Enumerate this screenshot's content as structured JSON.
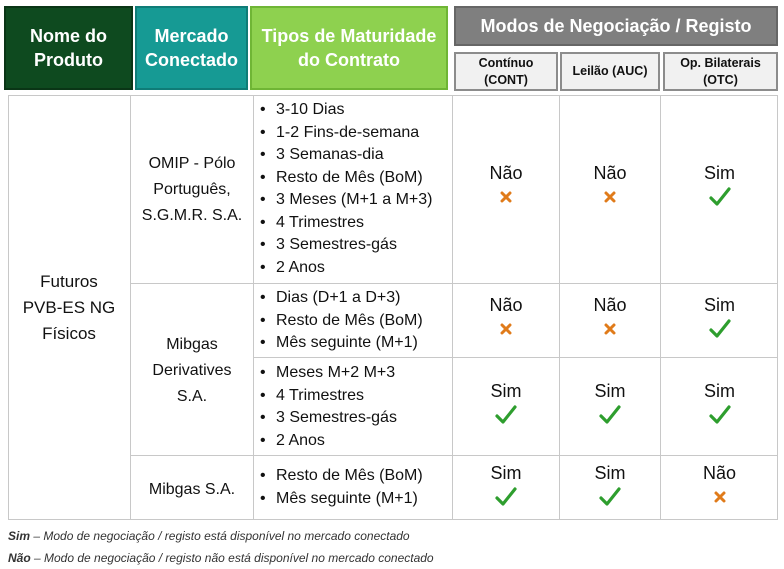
{
  "header": {
    "product": "Nome do Produto",
    "market": "Mercado Conectado",
    "maturity": "Tipos de Maturidade do Contrato",
    "modes": "Modos de Negociação / Registo",
    "sub": {
      "cont": "Contínuo (CONT)",
      "auc": "Leilão (AUC)",
      "otc": "Op. Bilaterais (OTC)"
    }
  },
  "product": "Futuros PVB-ES NG Físicos",
  "markets": {
    "omip": "OMIP - Pólo Português, S.G.M.R. S.A.",
    "mibgas_derivatives": "Mibgas Derivatives S.A.",
    "mibgas": "Mibgas S.A."
  },
  "rows": [
    {
      "maturities": [
        "3-10 Dias",
        "1-2 Fins-de-semana",
        "3 Semanas-dia",
        "Resto de Mês (BoM)",
        "3 Meses (M+1 a M+3)",
        "4 Trimestres",
        "3 Semestres-gás",
        "2 Anos"
      ],
      "cont": "Não",
      "auc": "Não",
      "otc": "Sim"
    },
    {
      "maturities": [
        "Dias (D+1 a D+3)",
        "Resto de Mês (BoM)",
        "Mês seguinte (M+1)"
      ],
      "cont": "Não",
      "auc": "Não",
      "otc": "Sim"
    },
    {
      "maturities": [
        "Meses M+2 M+3",
        "4 Trimestres",
        "3 Semestres-gás",
        "2 Anos"
      ],
      "cont": "Sim",
      "auc": "Sim",
      "otc": "Sim"
    },
    {
      "maturities": [
        "Resto de Mês (BoM)",
        "Mês seguinte (M+1)"
      ],
      "cont": "Sim",
      "auc": "Sim",
      "otc": "Não"
    }
  ],
  "icons": {
    "yes": "check-icon",
    "no": "cross-icon"
  },
  "colors": {
    "yes": "#2e9e2e",
    "no": "#e07b1a"
  },
  "footer": {
    "yes_term": "Sim",
    "yes_text": " – Modo de negociação / registo está disponível no mercado conectado",
    "no_term": "Não",
    "no_text": " – Modo de negociação / registo não está disponível no mercado conectado"
  }
}
